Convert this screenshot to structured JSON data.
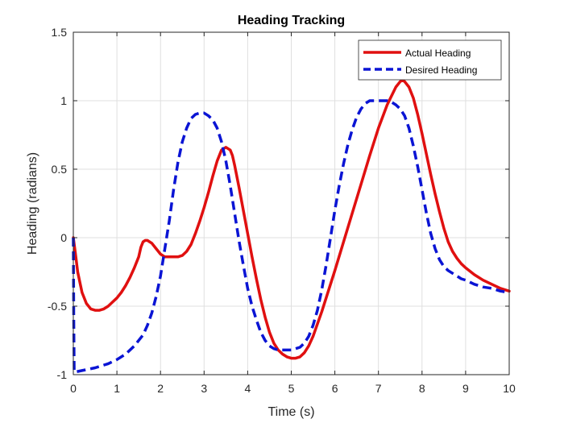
{
  "chart_data": {
    "type": "line",
    "title": "Heading Tracking",
    "xlabel": "Time (s)",
    "ylabel": "Heading (radians)",
    "xlim": [
      0,
      10
    ],
    "ylim": [
      -1,
      1.5
    ],
    "xticks": [
      0,
      1,
      2,
      3,
      4,
      5,
      6,
      7,
      8,
      9,
      10
    ],
    "yticks": [
      -1,
      -0.5,
      0,
      0.5,
      1,
      1.5
    ],
    "xtick_labels": [
      "0",
      "1",
      "2",
      "3",
      "4",
      "5",
      "6",
      "7",
      "8",
      "9",
      "10"
    ],
    "ytick_labels": [
      "-1",
      "-0.5",
      "0",
      "0.5",
      "1",
      "1.5"
    ],
    "grid": true,
    "legend_position": "top-right",
    "series": [
      {
        "name": "Actual Heading",
        "color": "#e01010",
        "line_style": "solid",
        "x": [
          0,
          0.05,
          0.1,
          0.2,
          0.3,
          0.4,
          0.5,
          0.6,
          0.7,
          0.8,
          0.9,
          1.0,
          1.1,
          1.2,
          1.3,
          1.4,
          1.5,
          1.55,
          1.6,
          1.65,
          1.7,
          1.75,
          1.8,
          1.9,
          2.0,
          2.1,
          2.2,
          2.3,
          2.4,
          2.5,
          2.6,
          2.7,
          2.8,
          2.9,
          3.0,
          3.1,
          3.2,
          3.3,
          3.4,
          3.5,
          3.6,
          3.65,
          3.7,
          3.8,
          3.9,
          4.0,
          4.1,
          4.2,
          4.3,
          4.4,
          4.5,
          4.6,
          4.7,
          4.8,
          4.9,
          5.0,
          5.1,
          5.2,
          5.3,
          5.4,
          5.5,
          5.6,
          5.7,
          5.8,
          5.9,
          6.0,
          6.2,
          6.4,
          6.6,
          6.8,
          7.0,
          7.2,
          7.4,
          7.5,
          7.55,
          7.6,
          7.7,
          7.8,
          7.9,
          8.0,
          8.1,
          8.2,
          8.3,
          8.4,
          8.5,
          8.6,
          8.7,
          8.8,
          8.9,
          9.0,
          9.2,
          9.4,
          9.6,
          9.8,
          10.0
        ],
        "y": [
          0,
          -0.12,
          -0.25,
          -0.4,
          -0.48,
          -0.52,
          -0.53,
          -0.53,
          -0.52,
          -0.5,
          -0.47,
          -0.44,
          -0.4,
          -0.35,
          -0.29,
          -0.22,
          -0.14,
          -0.07,
          -0.03,
          -0.02,
          -0.02,
          -0.03,
          -0.04,
          -0.08,
          -0.12,
          -0.14,
          -0.14,
          -0.14,
          -0.14,
          -0.13,
          -0.1,
          -0.05,
          0.03,
          0.12,
          0.22,
          0.33,
          0.45,
          0.56,
          0.64,
          0.66,
          0.64,
          0.6,
          0.53,
          0.37,
          0.2,
          0.03,
          -0.14,
          -0.3,
          -0.45,
          -0.58,
          -0.69,
          -0.77,
          -0.82,
          -0.85,
          -0.87,
          -0.88,
          -0.88,
          -0.87,
          -0.84,
          -0.79,
          -0.72,
          -0.63,
          -0.54,
          -0.44,
          -0.34,
          -0.24,
          -0.03,
          0.18,
          0.39,
          0.6,
          0.8,
          0.97,
          1.1,
          1.14,
          1.15,
          1.14,
          1.1,
          1.02,
          0.9,
          0.76,
          0.61,
          0.46,
          0.32,
          0.19,
          0.07,
          -0.03,
          -0.1,
          -0.15,
          -0.19,
          -0.22,
          -0.27,
          -0.31,
          -0.34,
          -0.37,
          -0.39
        ]
      },
      {
        "name": "Desired Heading",
        "color": "#0a14d4",
        "line_style": "dashed",
        "x": [
          0,
          0.01,
          0.02,
          0.05,
          0.2,
          0.5,
          0.8,
          1.0,
          1.2,
          1.4,
          1.6,
          1.7,
          1.8,
          1.9,
          2.0,
          2.1,
          2.2,
          2.3,
          2.4,
          2.5,
          2.6,
          2.7,
          2.8,
          2.9,
          3.0,
          3.1,
          3.2,
          3.3,
          3.4,
          3.5,
          3.6,
          3.7,
          3.8,
          3.9,
          4.0,
          4.1,
          4.2,
          4.3,
          4.4,
          4.5,
          4.6,
          4.7,
          4.8,
          4.9,
          5.0,
          5.1,
          5.2,
          5.3,
          5.4,
          5.5,
          5.6,
          5.7,
          5.8,
          5.9,
          6.0,
          6.1,
          6.2,
          6.3,
          6.4,
          6.5,
          6.6,
          6.7,
          6.8,
          6.9,
          7.0,
          7.1,
          7.2,
          7.3,
          7.4,
          7.5,
          7.6,
          7.7,
          7.8,
          7.9,
          8.0,
          8.1,
          8.2,
          8.3,
          8.4,
          8.5,
          8.6,
          8.7,
          8.8,
          8.9,
          9.0,
          9.2,
          9.4,
          9.6,
          9.8,
          10.0
        ],
        "y": [
          0,
          -0.6,
          -0.98,
          -0.98,
          -0.97,
          -0.95,
          -0.92,
          -0.89,
          -0.85,
          -0.79,
          -0.71,
          -0.64,
          -0.55,
          -0.43,
          -0.28,
          -0.08,
          0.12,
          0.35,
          0.55,
          0.7,
          0.8,
          0.87,
          0.9,
          0.91,
          0.91,
          0.89,
          0.86,
          0.8,
          0.7,
          0.56,
          0.38,
          0.18,
          -0.02,
          -0.2,
          -0.37,
          -0.5,
          -0.6,
          -0.69,
          -0.75,
          -0.79,
          -0.81,
          -0.82,
          -0.82,
          -0.82,
          -0.82,
          -0.81,
          -0.8,
          -0.77,
          -0.72,
          -0.64,
          -0.53,
          -0.38,
          -0.2,
          0.0,
          0.2,
          0.38,
          0.54,
          0.68,
          0.79,
          0.88,
          0.94,
          0.98,
          1.0,
          1.0,
          1.0,
          1.0,
          1.0,
          0.99,
          0.97,
          0.94,
          0.89,
          0.8,
          0.67,
          0.52,
          0.35,
          0.18,
          0.03,
          -0.08,
          -0.16,
          -0.21,
          -0.24,
          -0.26,
          -0.28,
          -0.3,
          -0.31,
          -0.34,
          -0.36,
          -0.37,
          -0.39,
          -0.4
        ]
      }
    ]
  }
}
